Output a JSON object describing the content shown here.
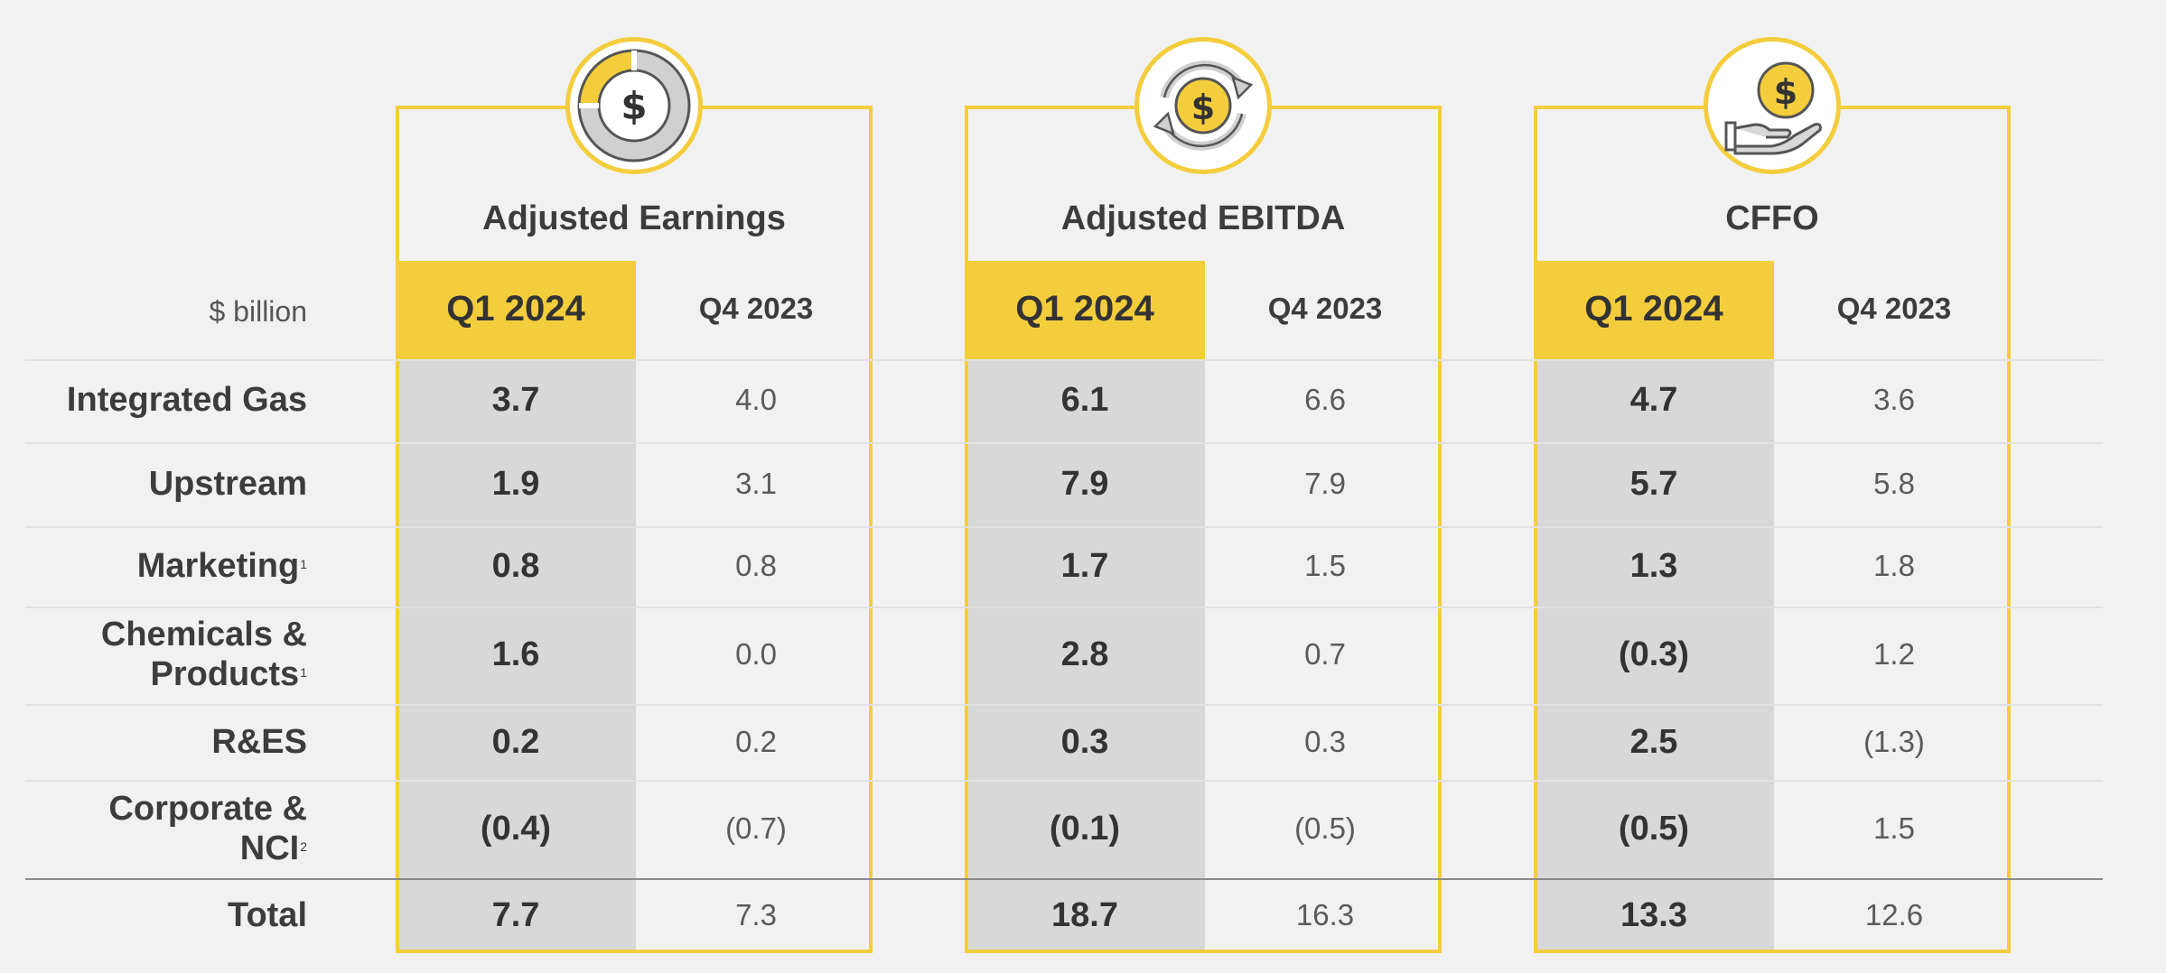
{
  "unit_label": "$ billion",
  "colors": {
    "accent": "#f4cd3d",
    "highlight_body": "#d8d8d8",
    "background": "#f1f1f1"
  },
  "panels": [
    {
      "title": "Adjusted Earnings",
      "icon": "pie-chart-dollar-icon",
      "col_q1": "Q1 2024",
      "col_q4": "Q4 2023",
      "q1": [
        "3.7",
        "1.9",
        "0.8",
        "1.6",
        "0.2",
        "(0.4)",
        "7.7"
      ],
      "q4": [
        "4.0",
        "3.1",
        "0.8",
        "0.0",
        "0.2",
        "(0.7)",
        "7.3"
      ]
    },
    {
      "title": "Adjusted EBITDA",
      "icon": "dollar-cycle-icon",
      "col_q1": "Q1 2024",
      "col_q4": "Q4 2023",
      "q1": [
        "6.1",
        "7.9",
        "1.7",
        "2.8",
        "0.3",
        "(0.1)",
        "18.7"
      ],
      "q4": [
        "6.6",
        "7.9",
        "1.5",
        "0.7",
        "0.3",
        "(0.5)",
        "16.3"
      ]
    },
    {
      "title": "CFFO",
      "icon": "hand-dollar-icon",
      "col_q1": "Q1 2024",
      "col_q4": "Q4 2023",
      "q1": [
        "4.7",
        "5.7",
        "1.3",
        "(0.3)",
        "2.5",
        "(0.5)",
        "13.3"
      ],
      "q4": [
        "3.6",
        "5.8",
        "1.8",
        "1.2",
        "(1.3)",
        "1.5",
        "12.6"
      ]
    }
  ],
  "rows": [
    {
      "line1": "Integrated Gas",
      "line2": "",
      "sup": ""
    },
    {
      "line1": "Upstream",
      "line2": "",
      "sup": ""
    },
    {
      "line1": "Marketing",
      "line2": "",
      "sup": "1"
    },
    {
      "line1": "Chemicals &",
      "line2": "Products",
      "sup": "1"
    },
    {
      "line1": "R&ES",
      "line2": "",
      "sup": ""
    },
    {
      "line1": "Corporate &",
      "line2": "NCI",
      "sup": "2"
    },
    {
      "line1": "Total",
      "line2": "",
      "sup": ""
    }
  ]
}
